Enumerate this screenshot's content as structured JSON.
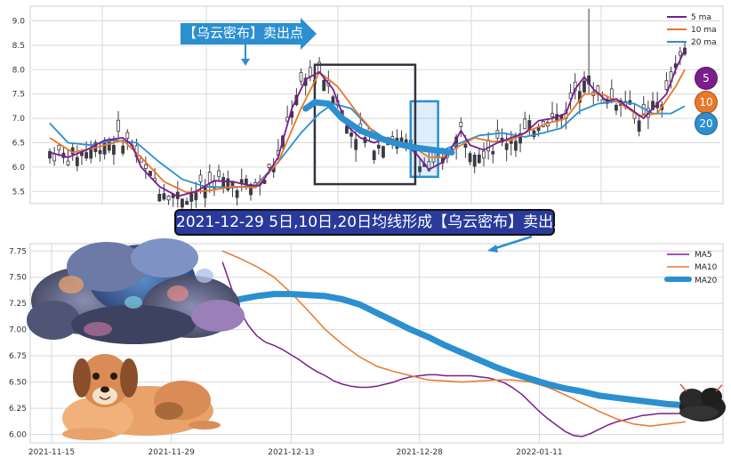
{
  "colors": {
    "ma5": "#7a1e8e",
    "ma10": "#e8782a",
    "ma20": "#2b8fd0",
    "candle": "#3a3a44",
    "grid": "#d9d9d9",
    "banner_bg": "#2a3a9a",
    "arrow": "#2b8fd0",
    "box_dark": "#333340",
    "box_blue": "#2b8fd0"
  },
  "annotations": {
    "top_arrow_label": "【乌云密布】卖出点",
    "banner": "2021-12-29 5日,10日,20日均线形成【乌云密布】卖出点",
    "badge_5": "5",
    "badge_10": "10",
    "badge_20": "20"
  },
  "icons": {
    "cloud": "storm-cloud-illustration",
    "dog": "dog-illustration",
    "small_cloud": "dark-cloud-icon"
  },
  "chart_data": [
    {
      "type": "candlestick",
      "legend": [
        "5 ma",
        "10 ma",
        "20 ma"
      ],
      "legend_position": "top-right",
      "grid": true,
      "ylim": [
        5.25,
        9.3
      ],
      "yticks": [
        "5.5",
        "6.0",
        "6.5",
        "7.0",
        "7.5",
        "8.0",
        "8.5",
        "9.0"
      ],
      "n": 140,
      "ma5": [
        [
          0,
          6.3
        ],
        [
          4,
          6.2
        ],
        [
          8,
          6.35
        ],
        [
          12,
          6.55
        ],
        [
          16,
          6.6
        ],
        [
          18,
          6.45
        ],
        [
          20,
          6.0
        ],
        [
          24,
          5.6
        ],
        [
          28,
          5.4
        ],
        [
          32,
          5.5
        ],
        [
          36,
          5.72
        ],
        [
          40,
          5.7
        ],
        [
          44,
          5.62
        ],
        [
          46,
          5.62
        ],
        [
          50,
          6.2
        ],
        [
          53,
          7.2
        ],
        [
          56,
          7.8
        ],
        [
          59,
          7.95
        ],
        [
          62,
          7.6
        ],
        [
          65,
          6.85
        ],
        [
          68,
          6.6
        ],
        [
          71,
          6.5
        ],
        [
          74,
          6.6
        ],
        [
          77,
          6.5
        ],
        [
          80,
          6.3
        ],
        [
          83,
          5.95
        ],
        [
          86,
          6.1
        ],
        [
          88,
          6.4
        ],
        [
          90,
          6.75
        ],
        [
          92,
          6.45
        ],
        [
          95,
          6.35
        ],
        [
          98,
          6.5
        ],
        [
          101,
          6.6
        ],
        [
          104,
          6.7
        ],
        [
          107,
          6.95
        ],
        [
          110,
          7.0
        ],
        [
          113,
          7.1
        ],
        [
          115,
          7.6
        ],
        [
          117,
          7.85
        ],
        [
          119,
          7.6
        ],
        [
          122,
          7.35
        ],
        [
          124,
          7.4
        ],
        [
          127,
          7.2
        ],
        [
          130,
          7.0
        ],
        [
          133,
          7.3
        ],
        [
          135,
          7.5
        ],
        [
          137,
          8.0
        ],
        [
          139,
          8.4
        ]
      ],
      "ma10": [
        [
          0,
          6.6
        ],
        [
          5,
          6.3
        ],
        [
          10,
          6.4
        ],
        [
          16,
          6.55
        ],
        [
          20,
          6.2
        ],
        [
          25,
          5.7
        ],
        [
          30,
          5.48
        ],
        [
          35,
          5.52
        ],
        [
          40,
          5.6
        ],
        [
          45,
          5.58
        ],
        [
          50,
          6.1
        ],
        [
          55,
          7.2
        ],
        [
          59,
          7.95
        ],
        [
          63,
          7.65
        ],
        [
          67,
          7.15
        ],
        [
          71,
          6.7
        ],
        [
          75,
          6.5
        ],
        [
          79,
          6.45
        ],
        [
          83,
          6.2
        ],
        [
          86,
          6.2
        ],
        [
          89,
          6.4
        ],
        [
          93,
          6.6
        ],
        [
          97,
          6.52
        ],
        [
          101,
          6.55
        ],
        [
          105,
          6.75
        ],
        [
          109,
          6.9
        ],
        [
          113,
          7.0
        ],
        [
          117,
          7.5
        ],
        [
          121,
          7.5
        ],
        [
          125,
          7.3
        ],
        [
          129,
          7.05
        ],
        [
          133,
          7.1
        ],
        [
          137,
          7.65
        ],
        [
          139,
          8.0
        ]
      ],
      "ma20": [
        [
          0,
          6.9
        ],
        [
          4,
          6.5
        ],
        [
          9,
          6.45
        ],
        [
          14,
          6.55
        ],
        [
          19,
          6.5
        ],
        [
          24,
          6.1
        ],
        [
          29,
          5.75
        ],
        [
          34,
          5.6
        ],
        [
          40,
          5.58
        ],
        [
          45,
          5.62
        ],
        [
          50,
          6.1
        ],
        [
          55,
          6.7
        ],
        [
          59,
          7.1
        ],
        [
          62,
          7.3
        ],
        [
          66,
          7.2
        ],
        [
          70,
          6.8
        ],
        [
          74,
          6.55
        ],
        [
          78,
          6.45
        ],
        [
          82,
          6.38
        ],
        [
          86,
          6.35
        ],
        [
          90,
          6.5
        ],
        [
          94,
          6.65
        ],
        [
          99,
          6.7
        ],
        [
          104,
          6.62
        ],
        [
          108,
          6.7
        ],
        [
          112,
          6.8
        ],
        [
          116,
          7.15
        ],
        [
          120,
          7.3
        ],
        [
          124,
          7.35
        ],
        [
          128,
          7.3
        ],
        [
          132,
          7.1
        ],
        [
          136,
          7.1
        ],
        [
          139,
          7.25
        ]
      ],
      "ma20_highlight": [
        [
          56,
          7.2
        ],
        [
          58,
          7.33
        ],
        [
          61,
          7.3
        ],
        [
          64,
          7.0
        ],
        [
          68,
          6.75
        ],
        [
          72,
          6.6
        ],
        [
          76,
          6.48
        ],
        [
          80,
          6.4
        ],
        [
          84,
          6.35
        ],
        [
          88,
          6.3
        ]
      ],
      "boxes": [
        {
          "from_idx": 58,
          "to_idx": 80,
          "low": 5.65,
          "high": 8.1
        },
        {
          "from_idx": 79,
          "to_idx": 85,
          "low": 5.8,
          "high": 7.35
        }
      ]
    },
    {
      "type": "line",
      "legend": [
        "MA5",
        "MA10",
        "MA20"
      ],
      "legend_position": "top-right",
      "grid": true,
      "x_labels": [
        "2021-11-15",
        "2021-11-29",
        "2021-12-13",
        "2021-12-28",
        "2022-01-11"
      ],
      "x_label_days": [
        0,
        14,
        28,
        43,
        57
      ],
      "xlim": [
        0,
        74
      ],
      "ylim": [
        5.92,
        7.82
      ],
      "yticks": [
        "6.00",
        "6.25",
        "6.50",
        "6.75",
        "7.00",
        "7.25",
        "7.50",
        "7.75"
      ],
      "series": [
        {
          "name": "MA5",
          "x": [
            20,
            21,
            22,
            23,
            24,
            25,
            26,
            27,
            28,
            29,
            30,
            31,
            32,
            33,
            34,
            35,
            36,
            37,
            38,
            39,
            40,
            41,
            42,
            43,
            44,
            45,
            46,
            47,
            48,
            49,
            50,
            51,
            52,
            53,
            54,
            55,
            56,
            57,
            58,
            59,
            60,
            61,
            62,
            63,
            64,
            65,
            66,
            67,
            68,
            69,
            70,
            71,
            72,
            73,
            74
          ],
          "values": [
            7.64,
            7.4,
            7.18,
            7.04,
            6.94,
            6.88,
            6.85,
            6.81,
            6.76,
            6.71,
            6.65,
            6.6,
            6.56,
            6.51,
            6.48,
            6.46,
            6.45,
            6.45,
            6.46,
            6.48,
            6.5,
            6.53,
            6.55,
            6.56,
            6.57,
            6.57,
            6.56,
            6.56,
            6.56,
            6.56,
            6.55,
            6.54,
            6.52,
            6.49,
            6.44,
            6.38,
            6.3,
            6.22,
            6.15,
            6.09,
            6.03,
            5.99,
            5.98,
            6.01,
            6.05,
            6.09,
            6.12,
            6.14,
            6.16,
            6.18,
            6.19,
            6.2,
            6.2,
            6.2,
            6.2
          ]
        },
        {
          "name": "MA10",
          "x": [
            20,
            22,
            24,
            26,
            28,
            30,
            32,
            34,
            36,
            38,
            40,
            42,
            44,
            46,
            48,
            50,
            52,
            54,
            56,
            58,
            60,
            62,
            64,
            66,
            68,
            70,
            72,
            74
          ],
          "values": [
            7.75,
            7.68,
            7.6,
            7.5,
            7.35,
            7.18,
            7.0,
            6.86,
            6.74,
            6.65,
            6.6,
            6.56,
            6.52,
            6.51,
            6.5,
            6.51,
            6.52,
            6.52,
            6.5,
            6.45,
            6.38,
            6.3,
            6.22,
            6.15,
            6.1,
            6.08,
            6.1,
            6.12
          ]
        },
        {
          "name": "MA20",
          "x": [
            20,
            22,
            24,
            26,
            28,
            30,
            32,
            34,
            36,
            38,
            40,
            42,
            44,
            46,
            48,
            50,
            52,
            54,
            56,
            58,
            60,
            62,
            64,
            66,
            68,
            70,
            72,
            74
          ],
          "values": [
            7.25,
            7.29,
            7.32,
            7.34,
            7.34,
            7.33,
            7.32,
            7.29,
            7.24,
            7.16,
            7.08,
            7.0,
            6.93,
            6.85,
            6.78,
            6.71,
            6.64,
            6.58,
            6.53,
            6.48,
            6.44,
            6.41,
            6.37,
            6.35,
            6.33,
            6.31,
            6.29,
            6.28
          ]
        }
      ]
    }
  ]
}
